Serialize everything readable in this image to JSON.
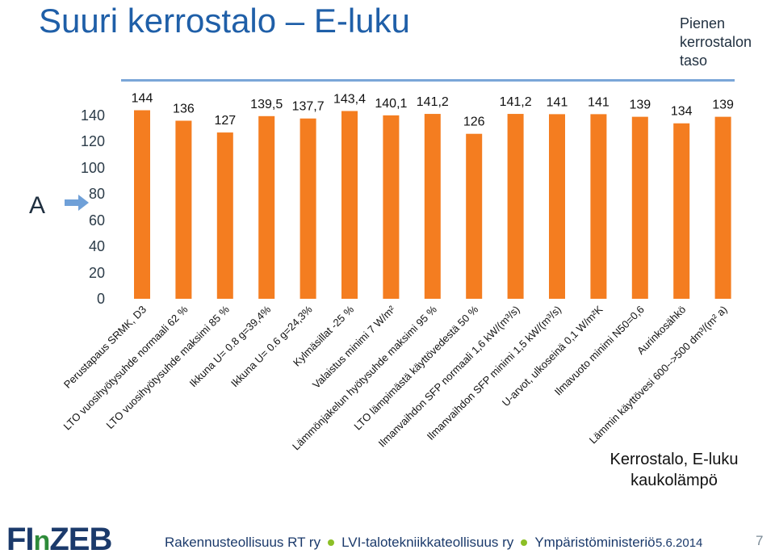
{
  "title": "Suuri kerrostalo – E-luku",
  "level_label": [
    "Pienen",
    "kerrostalon",
    "taso"
  ],
  "class_label": "A",
  "caption": [
    "Kerrostalo, E-luku",
    "kaukolämpö"
  ],
  "footer": {
    "logo_part1": "FI",
    "logo_part2": "n",
    "logo_part3": "ZEB",
    "org1": "Rakennusteollisuus RT ry",
    "org2": "LVI-talotekniikkateollisuus ry",
    "org3": "Ympäristöministeriö",
    "date": "5.6.2014",
    "page": "7"
  },
  "colors": {
    "bar": "#f47d20",
    "title": "#1f5fa8",
    "arrow": "#6fa0d8",
    "line": "#7aa6d8"
  },
  "chart_data": {
    "type": "bar",
    "categories": [
      "Perustapaus SRMK, D3",
      "LTO vuosihyötysuhde normaali 62 %",
      "LTO vuosihyötysuhde maksimi 85 %",
      "Ikkuna U= 0.8 g=39,4%",
      "Ikkuna U= 0.6 g=24,3%",
      "Kylmäsillat -25 %",
      "Valaistus minimi 7 W/m²",
      "Lämmönjakelun hyötysuhde maksimi 95 %",
      "LTO lämpimästä käyttövedestä 50 %",
      "Ilmanvaihdon SFP normaali 1,6 kW/(m³/s)",
      "Ilmanvaihdon SFP minimi 1,5 kW/(m³/s)",
      "U-arvot, ulkoseinä 0,1 W/m²K",
      "Ilmavuoto minimi N50=0,6",
      "Aurinkosähkö",
      "Lämmin käyttövesi 600-->500 dm³/(m² a)"
    ],
    "values": [
      144,
      136,
      127,
      139.5,
      137.7,
      143.4,
      140.1,
      141.2,
      126,
      141.2,
      141,
      141,
      139,
      134,
      139
    ],
    "value_labels": [
      "144",
      "136",
      "127",
      "139,5",
      "137,7",
      "143,4",
      "140,1",
      "141,2",
      "126",
      "141,2",
      "141",
      "141",
      "139",
      "134",
      "139"
    ],
    "y_ticks": [
      "0",
      "20",
      "40",
      "60",
      "80",
      "100",
      "120",
      "140"
    ],
    "ylim": [
      0,
      150
    ],
    "grid": false,
    "legend": "none"
  }
}
